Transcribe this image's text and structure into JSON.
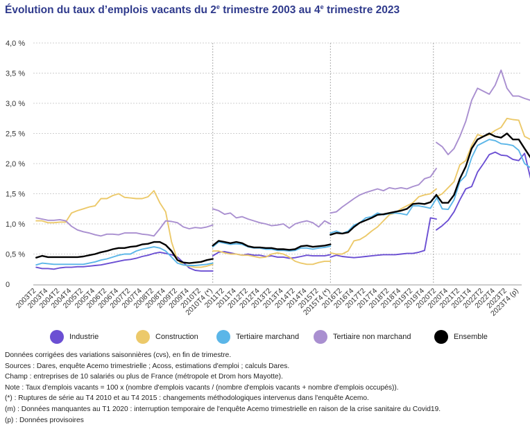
{
  "title_parts": {
    "a": "Évolution du taux d’emplois vacants du 2",
    "sup1": "e",
    "b": " trimestre 2003 au 4",
    "sup2": "e",
    "c": " trimestre 2023"
  },
  "legend": [
    {
      "label": "Industrie",
      "color": "#6b4fd3"
    },
    {
      "label": "Construction",
      "color": "#ecc96a"
    },
    {
      "label": "Tertiaire marchand",
      "color": "#5bb6e8"
    },
    {
      "label": "Tertiaire non marchand",
      "color": "#a98fd0"
    },
    {
      "label": "Ensemble",
      "color": "#000000"
    }
  ],
  "notes": [
    "Données corrigées des variations saisonnières (cvs), en fin de trimestre.",
    "Sources : Dares, enquête Acemo trimestrielle ; Acoss, estimations d'emploi ; calculs Dares.",
    "Champ : entreprises de 10 salariés ou plus de France (métropole et Drom hors Mayotte).",
    "Note : Taux d'emplois vacants = 100 x (nombre d'emplois vacants / (nombre d'emplois vacants + nombre d'emplois occupés)).",
    "(*) : Ruptures de série au T4 2010 et au T4 2015 : changements méthodologiques intervenus dans l'enquête Acemo.",
    "(m) : Données manquantes au T1 2020 : interruption temporaire de l'enquête Acemo trimestrielle en raison de la crise sanitaire du Covid19.",
    "(p) : Données provisoires"
  ],
  "chart_data": {
    "type": "line",
    "ylim": [
      0,
      4.0
    ],
    "yticks": [
      {
        "value": 0,
        "label": "0"
      },
      {
        "value": 0.5,
        "label": "0,5 %"
      },
      {
        "value": 1.0,
        "label": "1,0 %"
      },
      {
        "value": 1.5,
        "label": "1,5 %"
      },
      {
        "value": 2.0,
        "label": "2,0 %"
      },
      {
        "value": 2.5,
        "label": "2,5 %"
      },
      {
        "value": 3.0,
        "label": "3,0 %"
      },
      {
        "value": 3.5,
        "label": "3,5 %"
      },
      {
        "value": 4.0,
        "label": "4,0 %"
      }
    ],
    "xstart": "2003T2",
    "xticks": [
      {
        "index": 0,
        "label": "2003T2"
      },
      {
        "index": 2,
        "label": "2003T4"
      },
      {
        "index": 4,
        "label": "2004T2"
      },
      {
        "index": 6,
        "label": "2004T4"
      },
      {
        "index": 8,
        "label": "2005T2"
      },
      {
        "index": 10,
        "label": "2005T4"
      },
      {
        "index": 12,
        "label": "2006T2"
      },
      {
        "index": 14,
        "label": "2006T4"
      },
      {
        "index": 16,
        "label": "2007T2"
      },
      {
        "index": 18,
        "label": "2007T4"
      },
      {
        "index": 20,
        "label": "2008T2"
      },
      {
        "index": 22,
        "label": "2008T4"
      },
      {
        "index": 24,
        "label": "2009T2"
      },
      {
        "index": 26,
        "label": "2009T4"
      },
      {
        "index": 28,
        "label": "2010T2"
      },
      {
        "index": 30,
        "label": "2010T4 (*)"
      },
      {
        "index": 32,
        "label": "2011T2"
      },
      {
        "index": 34,
        "label": "2011T4"
      },
      {
        "index": 36,
        "label": "2012T2"
      },
      {
        "index": 38,
        "label": "2012T4"
      },
      {
        "index": 40,
        "label": "2013T2"
      },
      {
        "index": 42,
        "label": "2013T4"
      },
      {
        "index": 44,
        "label": "2014T2"
      },
      {
        "index": 46,
        "label": "2014T4"
      },
      {
        "index": 48,
        "label": "2015T2"
      },
      {
        "index": 50,
        "label": "2015T4 (*)"
      },
      {
        "index": 52,
        "label": "2016T2"
      },
      {
        "index": 54,
        "label": "2016T4"
      },
      {
        "index": 56,
        "label": "2017T2"
      },
      {
        "index": 58,
        "label": "2017T4"
      },
      {
        "index": 60,
        "label": "2018T2"
      },
      {
        "index": 62,
        "label": "2018T4"
      },
      {
        "index": 64,
        "label": "2019T2"
      },
      {
        "index": 66,
        "label": "2019T4"
      },
      {
        "index": 68,
        "label": "2020T2"
      },
      {
        "index": 70,
        "label": "2020T4"
      },
      {
        "index": 72,
        "label": "2021T2"
      },
      {
        "index": 74,
        "label": "2021T4"
      },
      {
        "index": 76,
        "label": "2022T2"
      },
      {
        "index": 78,
        "label": "2022T4"
      },
      {
        "index": 80,
        "label": "2023T2"
      },
      {
        "index": 82,
        "label": "2023T4 (p)"
      }
    ],
    "breaks": [
      30,
      50,
      67.5
    ],
    "series": [
      {
        "name": "Industrie",
        "color": "#6b4fd3",
        "segments": [
          {
            "start": 0,
            "values": [
              0.28,
              0.26,
              0.26,
              0.25,
              0.27,
              0.28,
              0.28,
              0.29,
              0.29,
              0.3,
              0.31,
              0.32,
              0.34,
              0.36,
              0.38,
              0.4,
              0.41,
              0.43,
              0.46,
              0.48,
              0.51,
              0.53,
              0.51,
              0.49,
              0.45,
              0.36,
              0.27,
              0.23,
              0.22,
              0.22,
              0.22
            ]
          },
          {
            "start": 30,
            "values": [
              0.47,
              0.53,
              0.54,
              0.52,
              0.5,
              0.48,
              0.5,
              0.48,
              0.48,
              0.46,
              0.47,
              0.45,
              0.45,
              0.43,
              0.44,
              0.46,
              0.48,
              0.47,
              0.47,
              0.47,
              0.49
            ]
          },
          {
            "start": 50,
            "values": [
              0.45,
              0.48,
              0.46,
              0.45,
              0.44,
              0.45,
              0.46,
              0.47,
              0.48,
              0.49,
              0.49,
              0.49,
              0.5,
              0.51,
              0.51,
              0.53,
              0.56,
              1.1,
              1.08
            ]
          },
          {
            "start": 68,
            "values": [
              0.9,
              0.97,
              1.06,
              1.2,
              1.4,
              1.58,
              1.62,
              1.86,
              2.0,
              2.15,
              2.19,
              2.14,
              2.13,
              2.07,
              2.05,
              2.17,
              1.76
            ]
          }
        ]
      },
      {
        "name": "Construction",
        "color": "#ecc96a",
        "segments": [
          {
            "start": 0,
            "values": [
              1.05,
              1.05,
              1.02,
              1.02,
              1.03,
              1.03,
              1.18,
              1.22,
              1.25,
              1.28,
              1.3,
              1.42,
              1.42,
              1.47,
              1.5,
              1.44,
              1.43,
              1.42,
              1.42,
              1.45,
              1.55,
              1.35,
              1.2,
              0.7,
              0.4,
              0.32,
              0.3,
              0.28,
              0.28,
              0.3,
              0.33
            ]
          },
          {
            "start": 30,
            "values": [
              0.55,
              0.55,
              0.52,
              0.5,
              0.5,
              0.48,
              0.48,
              0.46,
              0.44,
              0.45,
              0.5,
              0.52,
              0.5,
              0.45,
              0.38,
              0.35,
              0.33,
              0.33,
              0.36,
              0.38,
              0.38
            ]
          },
          {
            "start": 50,
            "values": [
              0.52,
              0.5,
              0.5,
              0.55,
              0.72,
              0.74,
              0.8,
              0.88,
              0.95,
              1.05,
              1.15,
              1.18,
              1.25,
              1.3,
              1.35,
              1.45,
              1.48,
              1.5,
              1.58
            ]
          },
          {
            "start": 68,
            "values": [
              1.45,
              1.5,
              1.6,
              1.7,
              1.98,
              2.05,
              2.3,
              2.48,
              2.45,
              2.48,
              2.55,
              2.6,
              2.75,
              2.73,
              2.72,
              2.45,
              2.4
            ]
          }
        ]
      },
      {
        "name": "Tertiaire marchand",
        "color": "#5bb6e8",
        "segments": [
          {
            "start": 0,
            "values": [
              0.32,
              0.35,
              0.34,
              0.33,
              0.33,
              0.33,
              0.33,
              0.33,
              0.33,
              0.35,
              0.37,
              0.4,
              0.42,
              0.45,
              0.48,
              0.5,
              0.5,
              0.55,
              0.58,
              0.6,
              0.62,
              0.6,
              0.55,
              0.45,
              0.35,
              0.32,
              0.31,
              0.31,
              0.32,
              0.33,
              0.35
            ]
          },
          {
            "start": 30,
            "values": [
              0.62,
              0.7,
              0.68,
              0.66,
              0.67,
              0.66,
              0.62,
              0.6,
              0.6,
              0.58,
              0.58,
              0.56,
              0.56,
              0.55,
              0.56,
              0.6,
              0.6,
              0.58,
              0.6,
              0.61,
              0.63
            ]
          },
          {
            "start": 50,
            "values": [
              0.85,
              0.88,
              0.84,
              0.88,
              0.98,
              1.02,
              1.1,
              1.12,
              1.18,
              1.15,
              1.17,
              1.18,
              1.17,
              1.15,
              1.3,
              1.3,
              1.28,
              1.26,
              1.42
            ]
          },
          {
            "start": 68,
            "values": [
              1.45,
              1.25,
              1.24,
              1.4,
              1.7,
              1.8,
              2.1,
              2.3,
              2.35,
              2.4,
              2.38,
              2.33,
              2.32,
              2.3,
              2.22,
              2.0,
              1.93
            ]
          }
        ]
      },
      {
        "name": "Tertiaire non marchand",
        "color": "#a98fd0",
        "segments": [
          {
            "start": 0,
            "values": [
              1.1,
              1.08,
              1.06,
              1.06,
              1.07,
              1.05,
              0.96,
              0.9,
              0.87,
              0.85,
              0.82,
              0.8,
              0.83,
              0.83,
              0.82,
              0.85,
              0.85,
              0.85,
              0.83,
              0.82,
              0.8,
              0.92,
              1.05,
              1.04,
              1.02,
              0.95,
              0.92,
              0.94,
              0.93,
              0.95,
              0.98
            ]
          },
          {
            "start": 30,
            "values": [
              1.25,
              1.22,
              1.16,
              1.18,
              1.1,
              1.12,
              1.08,
              1.05,
              1.02,
              1.0,
              0.97,
              0.98,
              1.0,
              0.93,
              1.0,
              1.03,
              1.05,
              1.02,
              0.95,
              1.05,
              1.0
            ]
          },
          {
            "start": 50,
            "values": [
              1.18,
              1.2,
              1.28,
              1.35,
              1.42,
              1.48,
              1.52,
              1.55,
              1.58,
              1.55,
              1.6,
              1.58,
              1.6,
              1.58,
              1.62,
              1.65,
              1.75,
              1.78,
              1.92
            ]
          },
          {
            "start": 68,
            "values": [
              2.35,
              2.28,
              2.15,
              2.25,
              2.45,
              2.7,
              3.05,
              3.25,
              3.2,
              3.15,
              3.3,
              3.55,
              3.25,
              3.12,
              3.12,
              3.08,
              3.05
            ]
          }
        ]
      },
      {
        "name": "Ensemble",
        "color": "#000000",
        "segments": [
          {
            "start": 0,
            "values": [
              0.44,
              0.47,
              0.45,
              0.45,
              0.45,
              0.45,
              0.45,
              0.45,
              0.46,
              0.48,
              0.5,
              0.53,
              0.55,
              0.58,
              0.6,
              0.6,
              0.62,
              0.63,
              0.66,
              0.67,
              0.7,
              0.7,
              0.65,
              0.55,
              0.4,
              0.36,
              0.35,
              0.36,
              0.37,
              0.4,
              0.42
            ]
          },
          {
            "start": 30,
            "values": [
              0.64,
              0.72,
              0.7,
              0.68,
              0.7,
              0.68,
              0.63,
              0.61,
              0.61,
              0.6,
              0.6,
              0.58,
              0.58,
              0.57,
              0.58,
              0.63,
              0.64,
              0.62,
              0.63,
              0.64,
              0.66
            ]
          },
          {
            "start": 50,
            "values": [
              0.82,
              0.85,
              0.84,
              0.86,
              0.95,
              1.02,
              1.06,
              1.1,
              1.15,
              1.16,
              1.18,
              1.2,
              1.22,
              1.25,
              1.33,
              1.34,
              1.33,
              1.36,
              1.48
            ]
          },
          {
            "start": 68,
            "values": [
              1.48,
              1.35,
              1.35,
              1.48,
              1.75,
              1.95,
              2.25,
              2.4,
              2.45,
              2.5,
              2.45,
              2.43,
              2.5,
              2.4,
              2.4,
              2.25,
              2.1
            ]
          }
        ]
      }
    ]
  }
}
